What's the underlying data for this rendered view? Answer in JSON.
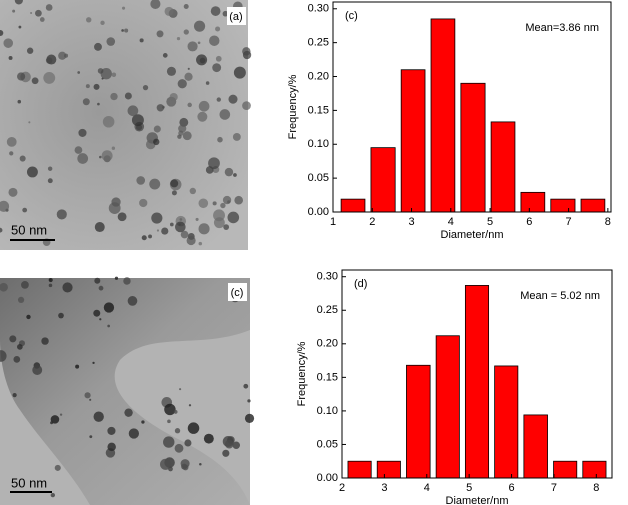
{
  "panels": [
    {
      "label": "(a)",
      "scale_bar": "50 nm"
    },
    {
      "label": "(c)",
      "scale_bar": "50 nm"
    }
  ],
  "chart_data": [
    {
      "type": "histogram",
      "panel_label": "(c)",
      "annotation": "Mean=3.86 nm",
      "xlabel": "Diameter/nm",
      "ylabel": "Frequency/%",
      "color": "#ff0000",
      "bins": [
        1.13,
        1.89,
        2.66,
        3.42,
        4.18,
        4.95,
        5.71,
        6.47,
        7.24,
        8.0
      ],
      "values": [
        0.019,
        0.095,
        0.21,
        0.285,
        0.19,
        0.133,
        0.029,
        0.019,
        0.019
      ],
      "xlim": [
        1,
        8.08
      ],
      "xticks": [
        1,
        2,
        3,
        4,
        5,
        6,
        7,
        8
      ],
      "ylim": [
        0,
        0.31
      ],
      "yticks": [
        {
          "value": 0,
          "label": "0.00"
        },
        {
          "value": 0.05,
          "label": "0.05"
        },
        {
          "value": 0.1,
          "label": "0.10"
        },
        {
          "value": 0.15,
          "label": "0.15"
        },
        {
          "value": 0.2,
          "label": "0.20"
        },
        {
          "value": 0.25,
          "label": "0.25"
        },
        {
          "value": 0.3,
          "label": "0.30"
        }
      ]
    },
    {
      "type": "histogram",
      "panel_label": "(d)",
      "annotation": "Mean = 5.02 nm",
      "xlabel": "Diameter/nm",
      "ylabel": "Frequency/%",
      "color": "#ff0000",
      "bins": [
        2.07,
        2.76,
        3.45,
        4.15,
        4.84,
        5.53,
        6.22,
        6.92,
        7.61,
        8.3
      ],
      "values": [
        0.025,
        0.025,
        0.168,
        0.212,
        0.287,
        0.167,
        0.094,
        0.025,
        0.025
      ],
      "xlim": [
        2,
        8.37
      ],
      "xticks": [
        2,
        3,
        4,
        5,
        6,
        7,
        8
      ],
      "ylim": [
        0,
        0.31
      ],
      "yticks": [
        {
          "value": 0,
          "label": "0.00"
        },
        {
          "value": 0.05,
          "label": "0.05"
        },
        {
          "value": 0.1,
          "label": "0.10"
        },
        {
          "value": 0.15,
          "label": "0.15"
        },
        {
          "value": 0.2,
          "label": "0.20"
        },
        {
          "value": 0.25,
          "label": "0.25"
        },
        {
          "value": 0.3,
          "label": "0.30"
        }
      ]
    }
  ]
}
